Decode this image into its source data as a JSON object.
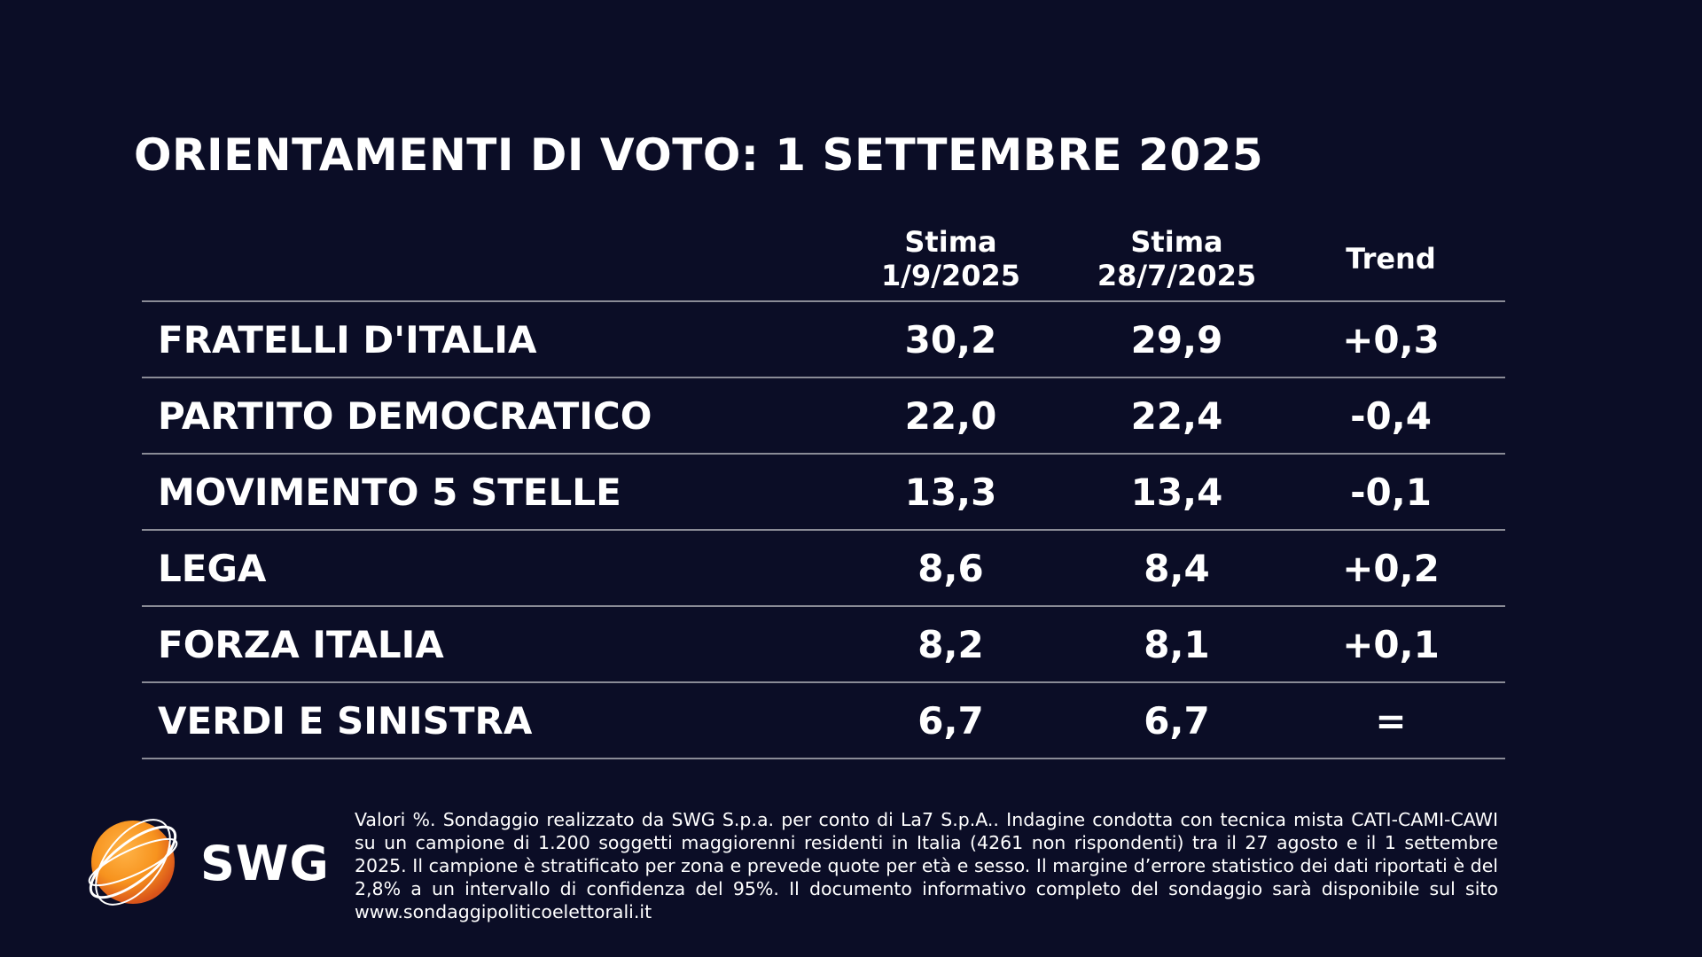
{
  "title": "ORIENTAMENTI DI VOTO: 1 SETTEMBRE 2025",
  "chart_data": {
    "type": "table",
    "columns": [
      {
        "line1": "Stima",
        "line2": "1/9/2025"
      },
      {
        "line1": "Stima",
        "line2": "28/7/2025"
      },
      {
        "line1": "Trend",
        "line2": ""
      }
    ],
    "rows": [
      {
        "party": "FRATELLI D'ITALIA",
        "stima_1_9_2025": "30,2",
        "stima_28_7_2025": "29,9",
        "trend": "+0,3"
      },
      {
        "party": "PARTITO DEMOCRATICO",
        "stima_1_9_2025": "22,0",
        "stima_28_7_2025": "22,4",
        "trend": "-0,4"
      },
      {
        "party": "MOVIMENTO 5 STELLE",
        "stima_1_9_2025": "13,3",
        "stima_28_7_2025": "13,4",
        "trend": "-0,1"
      },
      {
        "party": "LEGA",
        "stima_1_9_2025": "8,6",
        "stima_28_7_2025": "8,4",
        "trend": "+0,2"
      },
      {
        "party": "FORZA ITALIA",
        "stima_1_9_2025": "8,2",
        "stima_28_7_2025": "8,1",
        "trend": "+0,1"
      },
      {
        "party": "VERDI E SINISTRA",
        "stima_1_9_2025": "6,7",
        "stima_28_7_2025": "6,7",
        "trend": "="
      }
    ]
  },
  "logo": {
    "text": "SWG",
    "icon": "globe-logo-icon",
    "colors": {
      "sphere": "#f7931e",
      "sphere_dark": "#e0621a",
      "rings": "#ffffff"
    }
  },
  "footnote": "Valori %. Sondaggio realizzato da SWG S.p.a. per conto di La7 S.p.A.. Indagine condotta con tecnica mista CATI-CAMI-CAWI su un campione di 1.200 soggetti maggiorenni residenti in Italia (4261 non rispondenti) tra il 27 agosto e il 1 settembre 2025. Il campione è stratificato per zona e prevede quote per età e sesso. Il margine d’errore statistico dei dati riportati è del 2,8% a un intervallo di confidenza del 95%. Il documento informativo completo del sondaggio sarà disponibile sul sito www.sondaggipoliticoelettorali.it",
  "colors": {
    "background": "#0b0d26",
    "text": "#ffffff",
    "rule": "#8a8b96"
  }
}
